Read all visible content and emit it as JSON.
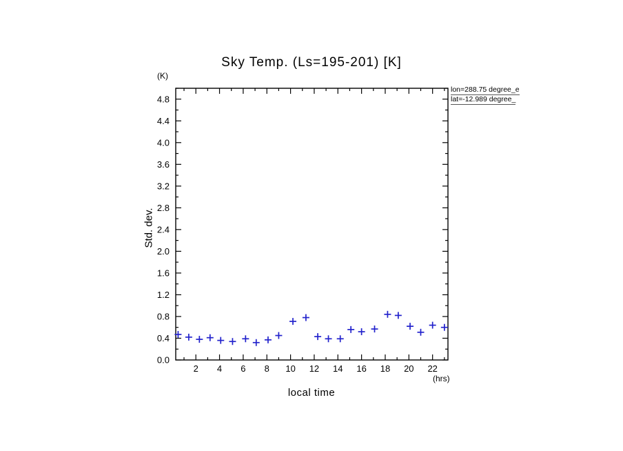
{
  "title": "Sky Temp. (Ls=195-201) [K]",
  "labels": {
    "y_unit": "(K)",
    "ylabel": "Std. dev.",
    "xlabel": "local time",
    "x_unit": "(hrs)"
  },
  "annotations": {
    "lon": "lon=288.75 degree_e",
    "lat": "lat=-12.989 degree_"
  },
  "chart_data": {
    "type": "scatter",
    "marker": "plus",
    "marker_color": "#2222cc",
    "axis_color": "#000000",
    "title": "Sky Temp. (Ls=195-201) [K]",
    "xlabel": "local time",
    "ylabel": "Std. dev.",
    "x_unit": "(hrs)",
    "y_unit": "(K)",
    "xlim": [
      0.3,
      23.3
    ],
    "ylim": [
      0.0,
      5.0
    ],
    "x_major_ticks": [
      2,
      4,
      6,
      8,
      10,
      12,
      14,
      16,
      18,
      20,
      22
    ],
    "x_minor_ticks": [
      1,
      3,
      5,
      7,
      9,
      11,
      13,
      15,
      17,
      19,
      21,
      23
    ],
    "y_major_ticks": [
      0.0,
      0.4,
      0.8,
      1.2,
      1.6,
      2.0,
      2.4,
      2.8,
      3.2,
      3.6,
      4.0,
      4.4,
      4.8
    ],
    "y_minor_step": 0.2,
    "grid": false,
    "legend": null,
    "x": [
      0.5,
      1.4,
      2.3,
      3.2,
      4.1,
      5.1,
      6.2,
      7.1,
      8.1,
      9.0,
      10.2,
      11.3,
      12.3,
      13.2,
      14.2,
      15.1,
      16.0,
      17.1,
      18.2,
      19.1,
      20.1,
      21.0,
      22.0,
      23.0
    ],
    "y": [
      0.47,
      0.42,
      0.38,
      0.41,
      0.36,
      0.34,
      0.39,
      0.32,
      0.37,
      0.45,
      0.71,
      0.78,
      0.43,
      0.39,
      0.39,
      0.56,
      0.52,
      0.57,
      0.84,
      0.82,
      0.62,
      0.51,
      0.64,
      0.6
    ]
  }
}
